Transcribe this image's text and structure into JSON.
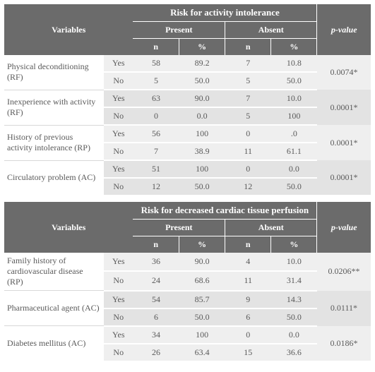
{
  "tables": [
    {
      "risk_title": "Risk for activity intolerance",
      "header": {
        "variables": "Variables",
        "present": "Present",
        "absent": "Absent",
        "n": "n",
        "pct": "%",
        "pvalue": "p-value"
      },
      "yes": "Yes",
      "no": "No",
      "rows": [
        {
          "var": "Physical deconditioning (RF)",
          "yes": {
            "pn": "58",
            "pp": "89.2",
            "an": "7",
            "ap": "10.8"
          },
          "no": {
            "pn": "5",
            "pp": "50.0",
            "an": "5",
            "ap": "50.0"
          },
          "p": "0.0074*"
        },
        {
          "var": "Inexperience with activity (RF)",
          "yes": {
            "pn": "63",
            "pp": "90.0",
            "an": "7",
            "ap": "10.0"
          },
          "no": {
            "pn": "0",
            "pp": "0.0",
            "an": "5",
            "ap": "100"
          },
          "p": "0.0001*"
        },
        {
          "var": "History of previous activity intolerance (RP)",
          "yes": {
            "pn": "56",
            "pp": "100",
            "an": "0",
            "ap": ".0"
          },
          "no": {
            "pn": "7",
            "pp": "38.9",
            "an": "11",
            "ap": "61.1"
          },
          "p": "0.0001*"
        },
        {
          "var": "Circulatory problem (AC)",
          "yes": {
            "pn": "51",
            "pp": "100",
            "an": "0",
            "ap": "0.0"
          },
          "no": {
            "pn": "12",
            "pp": "50.0",
            "an": "12",
            "ap": "50.0"
          },
          "p": "0.0001*"
        }
      ]
    },
    {
      "risk_title": "Risk for decreased cardiac tissue perfusion",
      "header": {
        "variables": "Variables",
        "present": "Present",
        "absent": "Absent",
        "n": "n",
        "pct": "%",
        "pvalue": "p-value"
      },
      "yes": "Yes",
      "no": "No",
      "rows": [
        {
          "var": "Family history of cardiovascular disease (RP)",
          "yes": {
            "pn": "36",
            "pp": "90.0",
            "an": "4",
            "ap": "10.0"
          },
          "no": {
            "pn": "24",
            "pp": "68.6",
            "an": "11",
            "ap": "31.4"
          },
          "p": "0.0206**"
        },
        {
          "var": "Pharmaceutical agent (AC)",
          "yes": {
            "pn": "54",
            "pp": "85.7",
            "an": "9",
            "ap": "14.3"
          },
          "no": {
            "pn": "6",
            "pp": "50.0",
            "an": "6",
            "ap": "50.0"
          },
          "p": "0.0111*"
        },
        {
          "var": "Diabetes mellitus (AC)",
          "yes": {
            "pn": "34",
            "pp": "100",
            "an": "0",
            "ap": "0.0"
          },
          "no": {
            "pn": "26",
            "pp": "63.4",
            "an": "15",
            "ap": "36.6"
          },
          "p": "0.0186*"
        }
      ]
    }
  ]
}
